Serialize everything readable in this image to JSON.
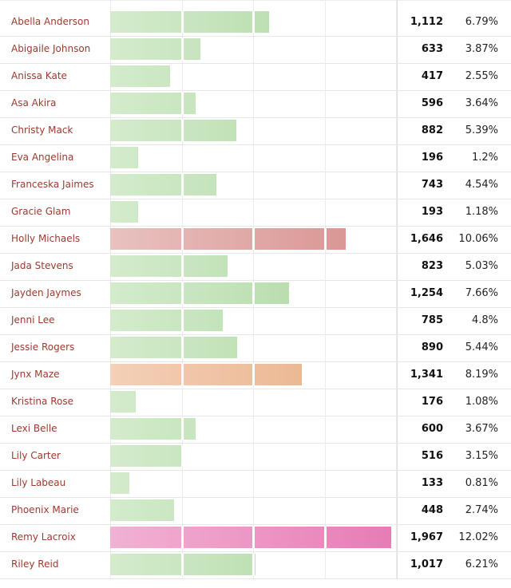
{
  "chart_data": {
    "type": "bar",
    "orientation": "horizontal",
    "title": "",
    "xlabel": "",
    "ylabel": "",
    "xlim": [
      0,
      2000
    ],
    "grid": true,
    "categories": [
      "Abella Anderson",
      "Abigaile Johnson",
      "Anissa Kate",
      "Asa Akira",
      "Christy Mack",
      "Eva Angelina",
      "Franceska Jaimes",
      "Gracie Glam",
      "Holly Michaels",
      "Jada Stevens",
      "Jayden Jaymes",
      "Jenni Lee",
      "Jessie Rogers",
      "Jynx Maze",
      "Kristina Rose",
      "Lexi Belle",
      "Lily Carter",
      "Lily Labeau",
      "Phoenix Marie",
      "Remy Lacroix",
      "Riley Reid"
    ],
    "values": [
      1112,
      633,
      417,
      596,
      882,
      196,
      743,
      193,
      1646,
      823,
      1254,
      785,
      890,
      1341,
      176,
      600,
      516,
      133,
      448,
      1967,
      1017
    ],
    "value_labels": [
      "1,112",
      "633",
      "417",
      "596",
      "882",
      "196",
      "743",
      "193",
      "1,646",
      "823",
      "1,254",
      "785",
      "890",
      "1,341",
      "176",
      "600",
      "516",
      "133",
      "448",
      "1,967",
      "1,017"
    ],
    "percent_labels": [
      "6.79%",
      "3.87%",
      "2.55%",
      "3.64%",
      "5.39%",
      "1.2%",
      "4.54%",
      "1.18%",
      "10.06%",
      "5.03%",
      "7.66%",
      "4.8%",
      "5.44%",
      "8.19%",
      "1.08%",
      "3.67%",
      "3.15%",
      "0.81%",
      "2.74%",
      "12.02%",
      "6.21%"
    ],
    "colors": {
      "default_light": "#d4ebcc",
      "default_dark": "#a9d69f",
      "highlight": [
        {
          "index": 8,
          "light": "#e8c2c0",
          "dark": "#d78e8b"
        },
        {
          "index": 13,
          "light": "#f3d0b8",
          "dark": "#e9ad83"
        },
        {
          "index": 19,
          "light": "#f1b2d4",
          "dark": "#e77bb5"
        }
      ],
      "name_text": "#9b3a2f",
      "row_line": "#e7e7e7",
      "grid_line": "#ececec"
    }
  }
}
